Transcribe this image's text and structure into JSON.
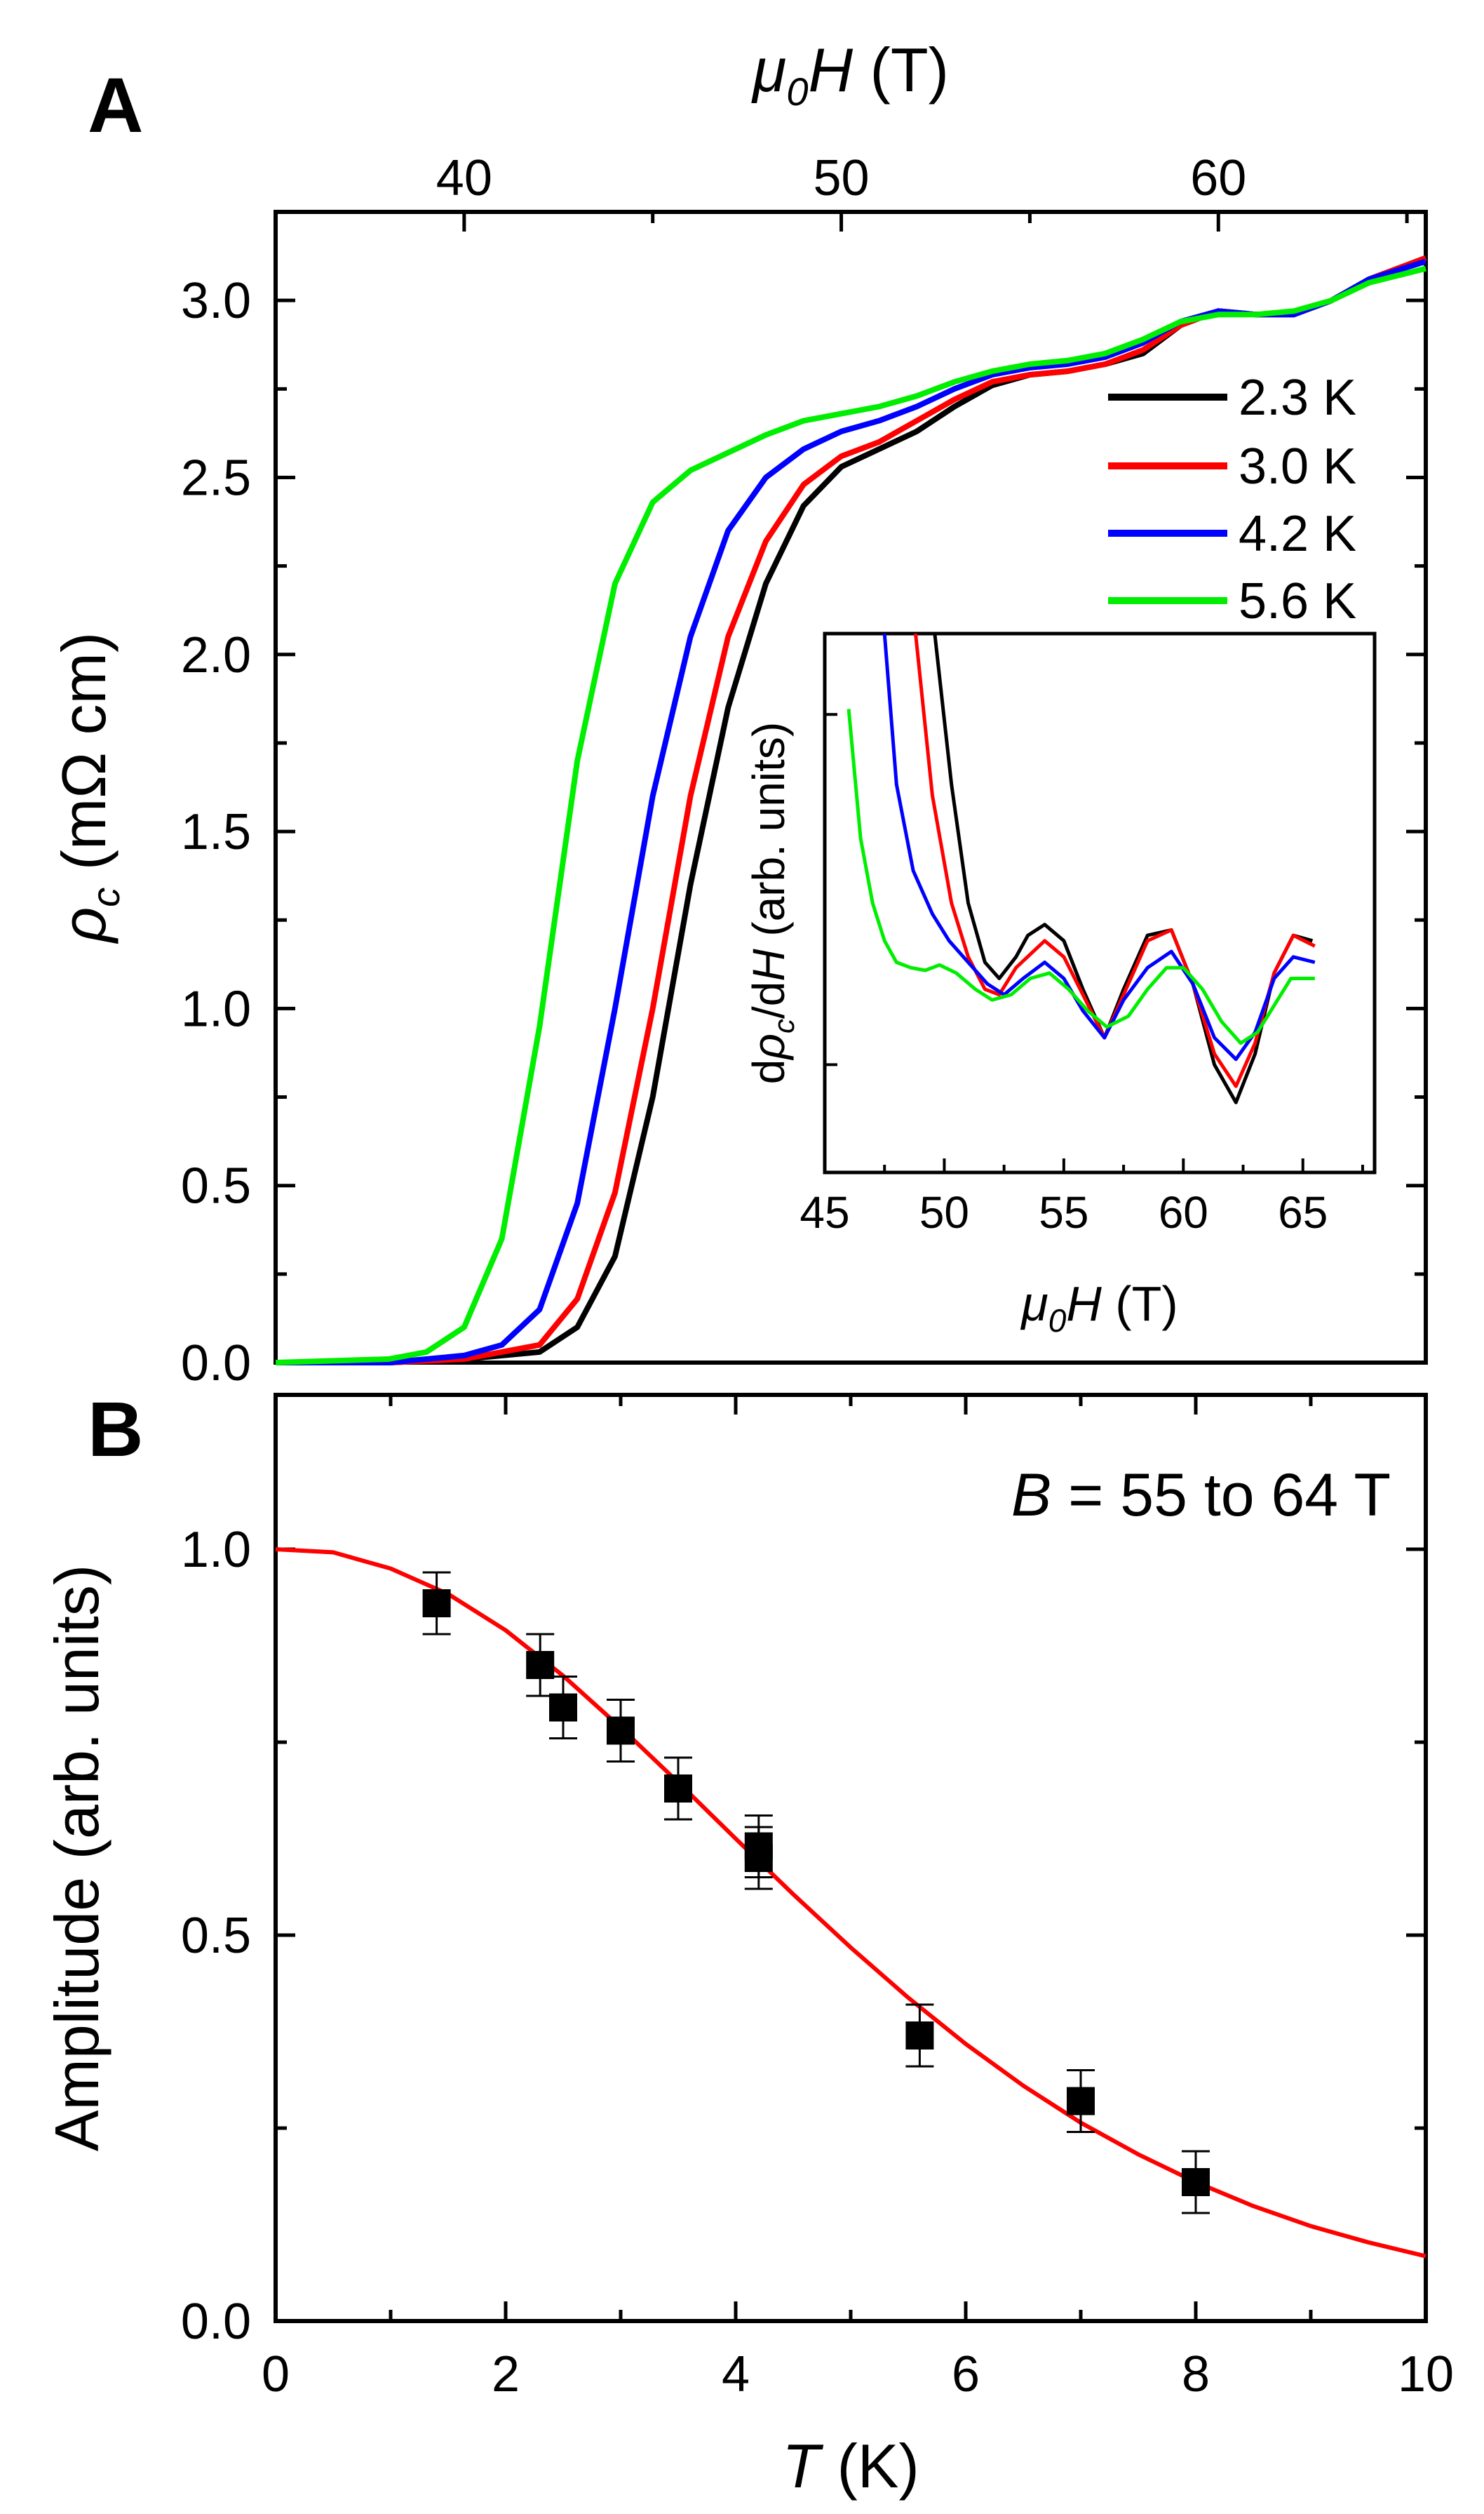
{
  "chart_data": [
    {
      "panel": "A",
      "type": "line",
      "top_axis_label": {
        "mu": "μ",
        "sub": "0",
        "H": "H",
        "unit": " (T)"
      },
      "ylabel": {
        "rho": "ρ",
        "sub": "c",
        "unit": " (mΩ cm)"
      },
      "xlim": [
        35,
        65.5
      ],
      "x_ticks": [
        40,
        50,
        60
      ],
      "ylim": [
        0,
        3.25
      ],
      "y_ticks": [
        0.0,
        0.5,
        1.0,
        1.5,
        2.0,
        2.5,
        3.0
      ],
      "y_tick_labels": [
        "0.0",
        "0.5",
        "1.0",
        "1.5",
        "2.0",
        "2.5",
        "3.0"
      ],
      "legend": {
        "position": "right",
        "entries": [
          "2.3 K",
          "3.0 K",
          "4.2 K",
          "5.6 K"
        ]
      },
      "series": [
        {
          "name": "2.3 K",
          "color": "#000000",
          "x": [
            35,
            38,
            40,
            42,
            43,
            44,
            45,
            46,
            47,
            48,
            49,
            50,
            51,
            52,
            53,
            54,
            55,
            56,
            57,
            58,
            59,
            60,
            61,
            62,
            63,
            64,
            65.5
          ],
          "y": [
            0.0,
            0.0,
            0.01,
            0.03,
            0.1,
            0.3,
            0.75,
            1.35,
            1.85,
            2.2,
            2.42,
            2.53,
            2.58,
            2.63,
            2.7,
            2.76,
            2.79,
            2.8,
            2.82,
            2.85,
            2.93,
            2.97,
            2.96,
            2.96,
            3.0,
            3.06,
            3.12
          ]
        },
        {
          "name": "3.0 K",
          "color": "#ff0000",
          "x": [
            35,
            38,
            40,
            42,
            43,
            44,
            45,
            46,
            47,
            48,
            49,
            50,
            51,
            52,
            53,
            54,
            55,
            56,
            57,
            58,
            59,
            60,
            61,
            62,
            63,
            64,
            65.5
          ],
          "y": [
            0.0,
            0.0,
            0.01,
            0.05,
            0.18,
            0.48,
            1.0,
            1.6,
            2.05,
            2.32,
            2.48,
            2.56,
            2.6,
            2.66,
            2.72,
            2.77,
            2.79,
            2.8,
            2.82,
            2.86,
            2.93,
            2.97,
            2.96,
            2.96,
            3.0,
            3.06,
            3.12
          ]
        },
        {
          "name": "4.2 K",
          "color": "#0000ff",
          "x": [
            35,
            38,
            40,
            41,
            42,
            43,
            44,
            45,
            46,
            47,
            48,
            49,
            50,
            51,
            52,
            53,
            54,
            55,
            56,
            57,
            58,
            59,
            60,
            61,
            62,
            63,
            64,
            65.5
          ],
          "y": [
            0.0,
            0.0,
            0.02,
            0.05,
            0.15,
            0.45,
            1.0,
            1.6,
            2.05,
            2.35,
            2.5,
            2.58,
            2.63,
            2.66,
            2.7,
            2.75,
            2.79,
            2.81,
            2.82,
            2.84,
            2.88,
            2.94,
            2.97,
            2.96,
            2.96,
            3.0,
            3.06,
            3.11
          ]
        },
        {
          "name": "5.6 K",
          "color": "#00ee00",
          "x": [
            35,
            38,
            39,
            40,
            41,
            42,
            43,
            44,
            45,
            46,
            47,
            48,
            49,
            50,
            51,
            52,
            53,
            54,
            55,
            56,
            57,
            58,
            59,
            60,
            61,
            62,
            63,
            64,
            65.5
          ],
          "y": [
            0.0,
            0.01,
            0.03,
            0.1,
            0.35,
            0.95,
            1.7,
            2.2,
            2.43,
            2.52,
            2.57,
            2.62,
            2.66,
            2.68,
            2.7,
            2.73,
            2.77,
            2.8,
            2.82,
            2.83,
            2.85,
            2.89,
            2.94,
            2.96,
            2.96,
            2.97,
            3.0,
            3.05,
            3.09
          ]
        }
      ],
      "inset": {
        "type": "line",
        "xlabel": {
          "mu": "μ",
          "sub": "0",
          "H": "H",
          "unit": " (T)"
        },
        "ylabel": {
          "d": "d",
          "rho": "ρ",
          "sub": "c",
          "slash": "/d",
          "H": "H",
          "unit": " (arb. units)"
        },
        "xlim": [
          45,
          68
        ],
        "x_ticks": [
          45,
          50,
          55,
          60,
          65
        ],
        "ylim": [
          0,
          10
        ],
        "series": [
          {
            "name": "2.3 K",
            "color": "#000000",
            "x": [
              49.6,
              50.3,
              51,
              51.7,
              52.3,
              53,
              53.5,
              54.2,
              55,
              55.8,
              56.7,
              57.5,
              58.5,
              59.5,
              60.4,
              61.3,
              62.2,
              63,
              63.8,
              64.6,
              65.4
            ],
            "y": [
              10,
              7.2,
              5.0,
              3.9,
              3.6,
              4.0,
              4.4,
              4.6,
              4.3,
              3.4,
              2.5,
              3.4,
              4.4,
              4.5,
              3.5,
              2.0,
              1.3,
              2.2,
              3.7,
              4.4,
              4.3
            ]
          },
          {
            "name": "3.0 K",
            "color": "#ff0000",
            "x": [
              48.8,
              49.5,
              50.3,
              51,
              51.7,
              52.3,
              53,
              54.2,
              55,
              55.8,
              56.7,
              57.5,
              58.5,
              59.5,
              60.4,
              61.3,
              62.2,
              63,
              63.8,
              64.6,
              65.5
            ],
            "y": [
              10,
              7.0,
              5.0,
              4.0,
              3.4,
              3.3,
              3.8,
              4.3,
              4.0,
              3.3,
              2.5,
              3.3,
              4.3,
              4.5,
              3.5,
              2.2,
              1.6,
              2.4,
              3.7,
              4.4,
              4.2
            ]
          },
          {
            "name": "4.2 K",
            "color": "#0000ff",
            "x": [
              47.5,
              48,
              48.7,
              49.5,
              50.2,
              51,
              51.8,
              52.5,
              53.3,
              54.2,
              55,
              55.8,
              56.7,
              57.5,
              58.5,
              59.5,
              60.4,
              61.3,
              62.2,
              63,
              63.8,
              64.6,
              65.5
            ],
            "y": [
              10,
              7.2,
              5.6,
              4.8,
              4.3,
              3.9,
              3.5,
              3.3,
              3.6,
              3.9,
              3.6,
              3.0,
              2.5,
              3.2,
              3.8,
              4.1,
              3.5,
              2.5,
              2.1,
              2.6,
              3.6,
              4.0,
              3.9
            ]
          },
          {
            "name": "5.6 K",
            "color": "#00ee00",
            "x": [
              46,
              46.5,
              47,
              47.5,
              48,
              48.6,
              49.2,
              49.8,
              50.5,
              51.3,
              52,
              52.8,
              53.6,
              54.4,
              55.2,
              56,
              56.8,
              57.7,
              58.5,
              59.3,
              60,
              60.8,
              61.6,
              62.4,
              63.1,
              63.8,
              64.5,
              65.5
            ],
            "y": [
              8.6,
              6.2,
              5.0,
              4.3,
              3.9,
              3.8,
              3.75,
              3.85,
              3.7,
              3.4,
              3.2,
              3.3,
              3.6,
              3.7,
              3.4,
              3.0,
              2.7,
              2.9,
              3.4,
              3.8,
              3.8,
              3.4,
              2.8,
              2.4,
              2.6,
              3.1,
              3.6,
              3.6
            ]
          }
        ]
      }
    },
    {
      "panel": "B",
      "type": "scatter",
      "annotation": {
        "B": "B",
        "text": " = 55 to 64 T"
      },
      "xlabel": {
        "T": "T",
        "unit": " (K)"
      },
      "ylabel": "Amplitude (arb. units)",
      "xlim": [
        0,
        10
      ],
      "x_ticks": [
        0,
        2,
        4,
        6,
        8,
        10
      ],
      "ylim": [
        0,
        1.2
      ],
      "y_ticks": [
        0.0,
        0.5,
        1.0
      ],
      "y_tick_labels": [
        "0.0",
        "0.5",
        "1.0"
      ],
      "series": [
        {
          "name": "data",
          "color": "#000000",
          "x": [
            1.4,
            2.3,
            2.5,
            3.0,
            3.5,
            4.2,
            4.2,
            5.6,
            7.0,
            8.0
          ],
          "y": [
            0.93,
            0.85,
            0.795,
            0.765,
            0.69,
            0.615,
            0.6,
            0.37,
            0.285,
            0.18
          ],
          "error": [
            0.04,
            0.04,
            0.04,
            0.04,
            0.04,
            0.04,
            0.04,
            0.04,
            0.04,
            0.04
          ]
        }
      ],
      "fit": {
        "name": "fit",
        "color": "#ff0000",
        "x": [
          0,
          0.5,
          1,
          1.5,
          2,
          2.5,
          3,
          3.5,
          4,
          4.5,
          5,
          5.5,
          6,
          6.5,
          7,
          7.5,
          8,
          8.5,
          9,
          9.5,
          10
        ],
        "y": [
          1.0,
          0.996,
          0.975,
          0.942,
          0.895,
          0.836,
          0.769,
          0.698,
          0.625,
          0.553,
          0.484,
          0.419,
          0.359,
          0.305,
          0.257,
          0.216,
          0.18,
          0.149,
          0.123,
          0.102,
          0.084
        ]
      }
    }
  ],
  "labels": {
    "panel_a": "A",
    "panel_b": "B"
  }
}
